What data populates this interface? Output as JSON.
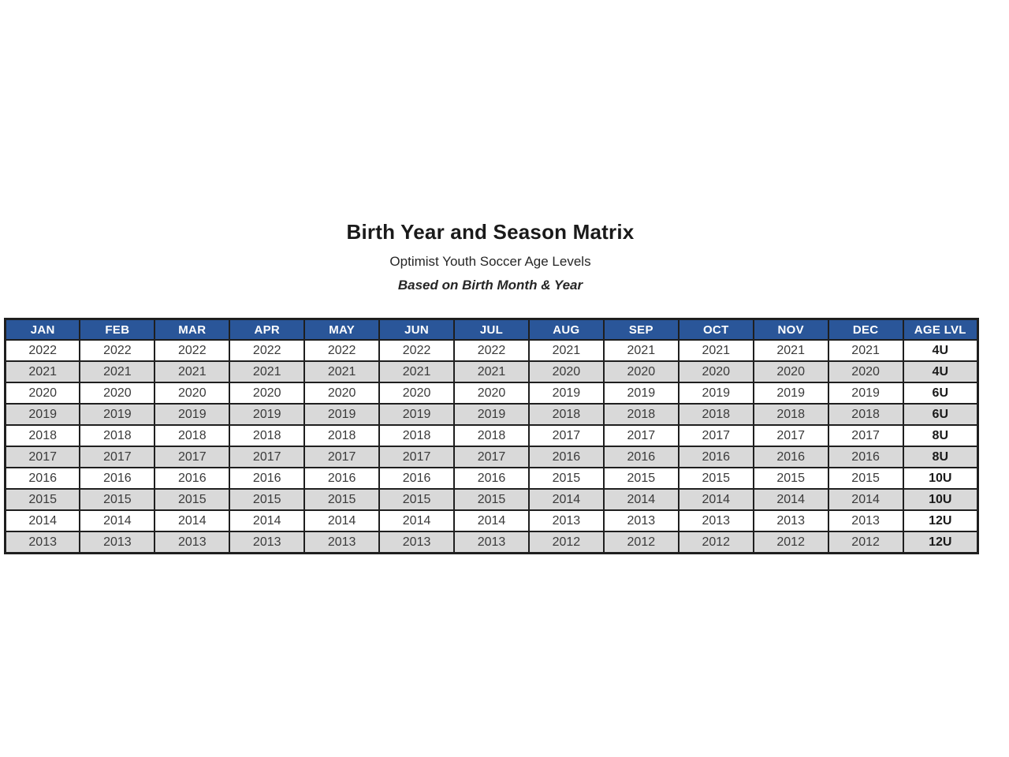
{
  "header": {
    "title": "Birth Year and Season Matrix",
    "subtitle": "Optimist Youth Soccer Age Levels",
    "note": "Based on Birth Month & Year"
  },
  "table": {
    "columns": [
      "JAN",
      "FEB",
      "MAR",
      "APR",
      "MAY",
      "JUN",
      "JUL",
      "AUG",
      "SEP",
      "OCT",
      "NOV",
      "DEC",
      "AGE LVL"
    ],
    "rows": [
      {
        "cells": [
          "2022",
          "2022",
          "2022",
          "2022",
          "2022",
          "2022",
          "2022",
          "2021",
          "2021",
          "2021",
          "2021",
          "2021"
        ],
        "age_level": "4U"
      },
      {
        "cells": [
          "2021",
          "2021",
          "2021",
          "2021",
          "2021",
          "2021",
          "2021",
          "2020",
          "2020",
          "2020",
          "2020",
          "2020"
        ],
        "age_level": "4U"
      },
      {
        "cells": [
          "2020",
          "2020",
          "2020",
          "2020",
          "2020",
          "2020",
          "2020",
          "2019",
          "2019",
          "2019",
          "2019",
          "2019"
        ],
        "age_level": "6U"
      },
      {
        "cells": [
          "2019",
          "2019",
          "2019",
          "2019",
          "2019",
          "2019",
          "2019",
          "2018",
          "2018",
          "2018",
          "2018",
          "2018"
        ],
        "age_level": "6U"
      },
      {
        "cells": [
          "2018",
          "2018",
          "2018",
          "2018",
          "2018",
          "2018",
          "2018",
          "2017",
          "2017",
          "2017",
          "2017",
          "2017"
        ],
        "age_level": "8U"
      },
      {
        "cells": [
          "2017",
          "2017",
          "2017",
          "2017",
          "2017",
          "2017",
          "2017",
          "2016",
          "2016",
          "2016",
          "2016",
          "2016"
        ],
        "age_level": "8U"
      },
      {
        "cells": [
          "2016",
          "2016",
          "2016",
          "2016",
          "2016",
          "2016",
          "2016",
          "2015",
          "2015",
          "2015",
          "2015",
          "2015"
        ],
        "age_level": "10U"
      },
      {
        "cells": [
          "2015",
          "2015",
          "2015",
          "2015",
          "2015",
          "2015",
          "2015",
          "2014",
          "2014",
          "2014",
          "2014",
          "2014"
        ],
        "age_level": "10U"
      },
      {
        "cells": [
          "2014",
          "2014",
          "2014",
          "2014",
          "2014",
          "2014",
          "2014",
          "2013",
          "2013",
          "2013",
          "2013",
          "2013"
        ],
        "age_level": "12U"
      },
      {
        "cells": [
          "2013",
          "2013",
          "2013",
          "2013",
          "2013",
          "2013",
          "2013",
          "2012",
          "2012",
          "2012",
          "2012",
          "2012"
        ],
        "age_level": "12U"
      }
    ]
  },
  "colors": {
    "header_bg": "#2a5699",
    "header_text": "#ffffff",
    "row_bg": "#ffffff",
    "row_alt_bg": "#d9d9d9",
    "border": "#1f1f1f",
    "year_text": "#3a3a3a",
    "age_text": "#1a1a1a"
  }
}
